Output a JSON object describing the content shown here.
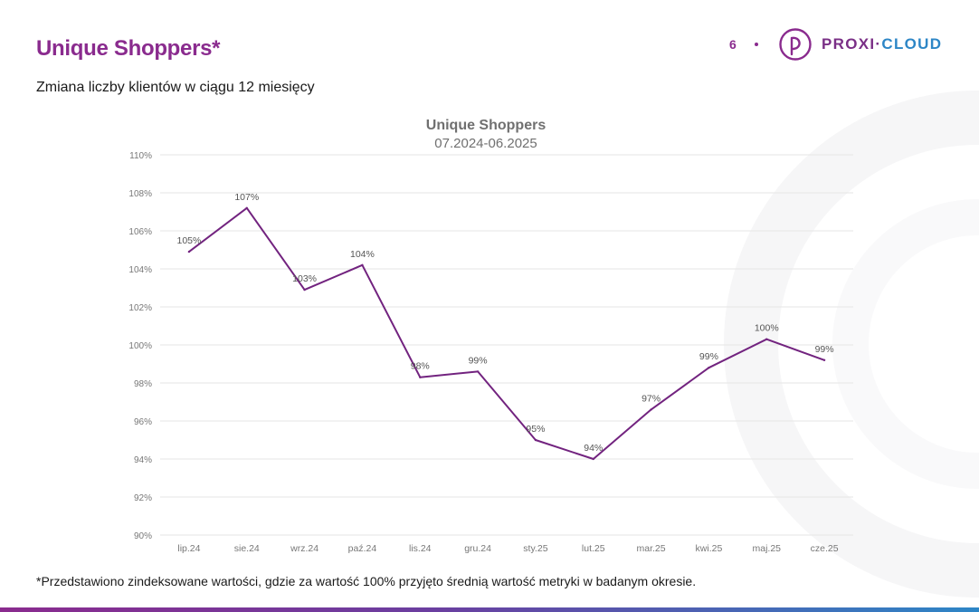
{
  "header": {
    "title": "Unique Shoppers*",
    "subtitle": "Zmiana liczby klientów w ciągu 12 miesięcy",
    "page_number": "6",
    "logo_left": "PROXI·",
    "logo_right": "CLOUD"
  },
  "footer": {
    "note": "*Przedstawiono zindeksowane wartości, gdzie za wartość 100% przyjęto średnią wartość metryki w badanym okresie."
  },
  "colors": {
    "brand_purple": "#8a2b8e",
    "brand_blue": "#2d86c6",
    "line": "#72237f"
  },
  "chart_data": {
    "type": "line",
    "title": "Unique Shoppers",
    "subtitle": "07.2024-06.2025",
    "xlabel": "",
    "ylabel": "",
    "ylim": [
      90,
      110
    ],
    "ytick_step": 2,
    "ytick_suffix": "%",
    "grid": true,
    "legend": "none",
    "categories": [
      "lip.24",
      "sie.24",
      "wrz.24",
      "paź.24",
      "lis.24",
      "gru.24",
      "sty.25",
      "lut.25",
      "mar.25",
      "kwi.25",
      "maj.25",
      "cze.25"
    ],
    "series": [
      {
        "name": "Unique Shoppers",
        "values": [
          104.9,
          107.2,
          102.9,
          104.2,
          98.3,
          98.6,
          95.0,
          94.0,
          96.6,
          98.8,
          100.3,
          99.2
        ],
        "labels": [
          "105%",
          "107%",
          "103%",
          "104%",
          "98%",
          "99%",
          "95%",
          "94%",
          "97%",
          "99%",
          "100%",
          "99%"
        ]
      }
    ]
  }
}
